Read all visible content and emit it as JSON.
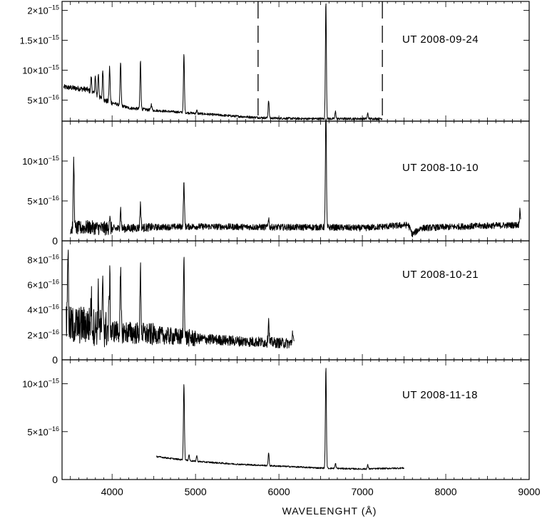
{
  "chart_data": {
    "type": "line",
    "xlabel": "WAVELENGHT (Å)",
    "xlim": [
      3400,
      9000
    ],
    "x_ticks": [
      {
        "value": 4000,
        "label": "4000"
      },
      {
        "value": 5000,
        "label": "5000"
      },
      {
        "value": 6000,
        "label": "6000"
      },
      {
        "value": 7000,
        "label": "7000"
      },
      {
        "value": 8000,
        "label": "8000"
      },
      {
        "value": 9000,
        "label": "9000"
      }
    ],
    "panels": [
      {
        "name": "UT 2008-09-24",
        "annotation": "UT 2008-09-24",
        "ylim": [
          0.15,
          2.15
        ],
        "y_unit": "1e-15",
        "y_ticks": [
          {
            "value": 0.5,
            "mant": "5",
            "exp": "−16"
          },
          {
            "value": 1.0,
            "mant": "10",
            "exp": "−15"
          },
          {
            "value": 1.5,
            "mant": "1.5",
            "exp": "−15"
          },
          {
            "value": 2.0,
            "mant": "2",
            "exp": "−15"
          }
        ],
        "dashed_lines_x": [
          5750,
          7240
        ],
        "x_range": [
          3420,
          7240
        ],
        "continuum": [
          [
            3420,
            0.72
          ],
          [
            3700,
            0.68
          ],
          [
            3900,
            0.5
          ],
          [
            4200,
            0.37
          ],
          [
            4500,
            0.33
          ],
          [
            5000,
            0.28
          ],
          [
            5500,
            0.23
          ],
          [
            5750,
            0.21
          ],
          [
            5900,
            0.2
          ],
          [
            6300,
            0.19
          ],
          [
            6600,
            0.19
          ],
          [
            7000,
            0.19
          ],
          [
            7240,
            0.19
          ]
        ],
        "lines": [
          [
            3750,
            0.25
          ],
          [
            3798,
            0.3
          ],
          [
            3835,
            0.38
          ],
          [
            3889,
            0.5
          ],
          [
            3970,
            0.58
          ],
          [
            4102,
            0.72
          ],
          [
            4340,
            0.8
          ],
          [
            4471,
            0.1
          ],
          [
            4861,
            0.97
          ],
          [
            5015,
            0.05
          ],
          [
            5876,
            0.3
          ],
          [
            6563,
            1.95
          ],
          [
            6678,
            0.12
          ],
          [
            7065,
            0.09
          ]
        ],
        "noise": 0.02
      },
      {
        "name": "UT 2008-10-10",
        "annotation": "UT 2008-10-10",
        "ylim": [
          0,
          1.5
        ],
        "y_unit": "1e-15",
        "y_ticks": [
          {
            "value": 0.5,
            "mant": "5",
            "exp": "−16"
          },
          {
            "value": 1.0,
            "mant": "10",
            "exp": "−15"
          }
        ],
        "dashed_lines_x": [],
        "x_range": [
          3500,
          8900
        ],
        "continuum": [
          [
            3500,
            0.15
          ],
          [
            3700,
            0.17
          ],
          [
            4000,
            0.15
          ],
          [
            4500,
            0.17
          ],
          [
            5000,
            0.18
          ],
          [
            6000,
            0.17
          ],
          [
            6600,
            0.17
          ],
          [
            7000,
            0.16
          ],
          [
            7550,
            0.2
          ],
          [
            7600,
            0.08
          ],
          [
            7700,
            0.16
          ],
          [
            8200,
            0.18
          ],
          [
            8900,
            0.2
          ]
        ],
        "lines": [
          [
            3540,
            0.85
          ],
          [
            3970,
            0.15
          ],
          [
            4102,
            0.25
          ],
          [
            4340,
            0.3
          ],
          [
            4861,
            0.55
          ],
          [
            5876,
            0.12
          ],
          [
            6563,
            1.5
          ],
          [
            8890,
            0.2
          ]
        ],
        "noise": 0.04
      },
      {
        "name": "UT 2008-10-21",
        "annotation": "UT 2008-10-21",
        "ylim": [
          0,
          9.5
        ],
        "y_unit": "1e-16",
        "y_ticks": [
          {
            "value": 2,
            "mant": "2",
            "exp": "−16"
          },
          {
            "value": 4,
            "mant": "4",
            "exp": "−16"
          },
          {
            "value": 6,
            "mant": "6",
            "exp": "−16"
          },
          {
            "value": 8,
            "mant": "8",
            "exp": "−16"
          }
        ],
        "dashed_lines_x": [],
        "x_range": [
          3450,
          6180
        ],
        "continuum": [
          [
            3450,
            2.7
          ],
          [
            3700,
            2.8
          ],
          [
            4000,
            2.3
          ],
          [
            4500,
            2.0
          ],
          [
            5000,
            1.7
          ],
          [
            5500,
            1.5
          ],
          [
            6180,
            1.3
          ]
        ],
        "lines": [
          [
            3470,
            6.3
          ],
          [
            3750,
            2.0
          ],
          [
            3835,
            2.5
          ],
          [
            3889,
            3.2
          ],
          [
            3970,
            4.2
          ],
          [
            4102,
            4.5
          ],
          [
            4340,
            5.0
          ],
          [
            4861,
            6.5
          ],
          [
            5876,
            1.8
          ],
          [
            6165,
            1.0
          ]
        ],
        "noise": 0.7
      },
      {
        "name": "UT 2008-11-18",
        "annotation": "UT 2008-11-18",
        "ylim": [
          0,
          1.25
        ],
        "y_unit": "1e-15",
        "y_ticks": [
          {
            "value": 0.5,
            "mant": "5",
            "exp": "−16"
          },
          {
            "value": 1.0,
            "mant": "10",
            "exp": "−15"
          }
        ],
        "dashed_lines_x": [],
        "x_range": [
          4530,
          7500
        ],
        "continuum": [
          [
            4530,
            0.24
          ],
          [
            4800,
            0.21
          ],
          [
            5000,
            0.19
          ],
          [
            5500,
            0.16
          ],
          [
            6000,
            0.14
          ],
          [
            6500,
            0.12
          ],
          [
            7000,
            0.11
          ],
          [
            7500,
            0.12
          ]
        ],
        "lines": [
          [
            4861,
            0.8
          ],
          [
            4922,
            0.06
          ],
          [
            5015,
            0.06
          ],
          [
            5876,
            0.13
          ],
          [
            6563,
            1.05
          ],
          [
            6678,
            0.05
          ],
          [
            7065,
            0.04
          ]
        ],
        "noise": 0.008
      }
    ]
  }
}
